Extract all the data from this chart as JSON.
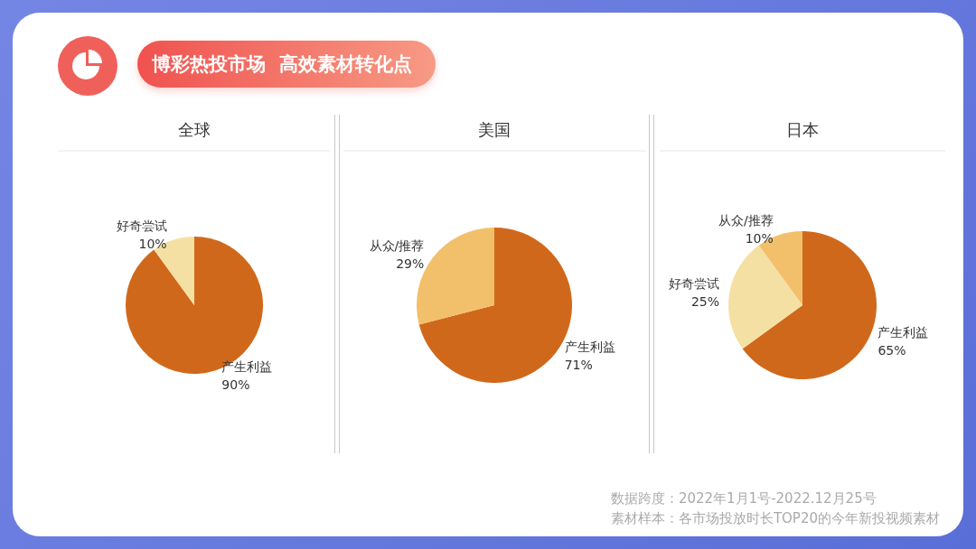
{
  "chart_data": [
    {
      "type": "other",
      "title": "博彩热投市场  高效素材转化点",
      "annotations": [
        "数据跨度：2022年1月1号-2022.12月25号",
        "素材样本：各市场投放时长TOP20的今年新投视频素材"
      ]
    },
    {
      "type": "pie",
      "title": "全球",
      "categories": [
        "产生利益",
        "好奇尝试"
      ],
      "values": [
        90,
        10
      ],
      "colors": [
        "#d0681b",
        "#f5e0a3"
      ],
      "value_labels": [
        "90%",
        "10%"
      ]
    },
    {
      "type": "pie",
      "title": "美国",
      "categories": [
        "产生利益",
        "从众/推荐"
      ],
      "values": [
        71,
        29
      ],
      "colors": [
        "#d0681b",
        "#f2c06a"
      ],
      "value_labels": [
        "71%",
        "29%"
      ]
    },
    {
      "type": "pie",
      "title": "日本",
      "categories": [
        "产生利益",
        "好奇尝试",
        "从众/推荐"
      ],
      "values": [
        65,
        25,
        10
      ],
      "colors": [
        "#d0681b",
        "#f5e0a3",
        "#f2c06a"
      ],
      "value_labels": [
        "65%",
        "25%",
        "10%"
      ]
    }
  ]
}
